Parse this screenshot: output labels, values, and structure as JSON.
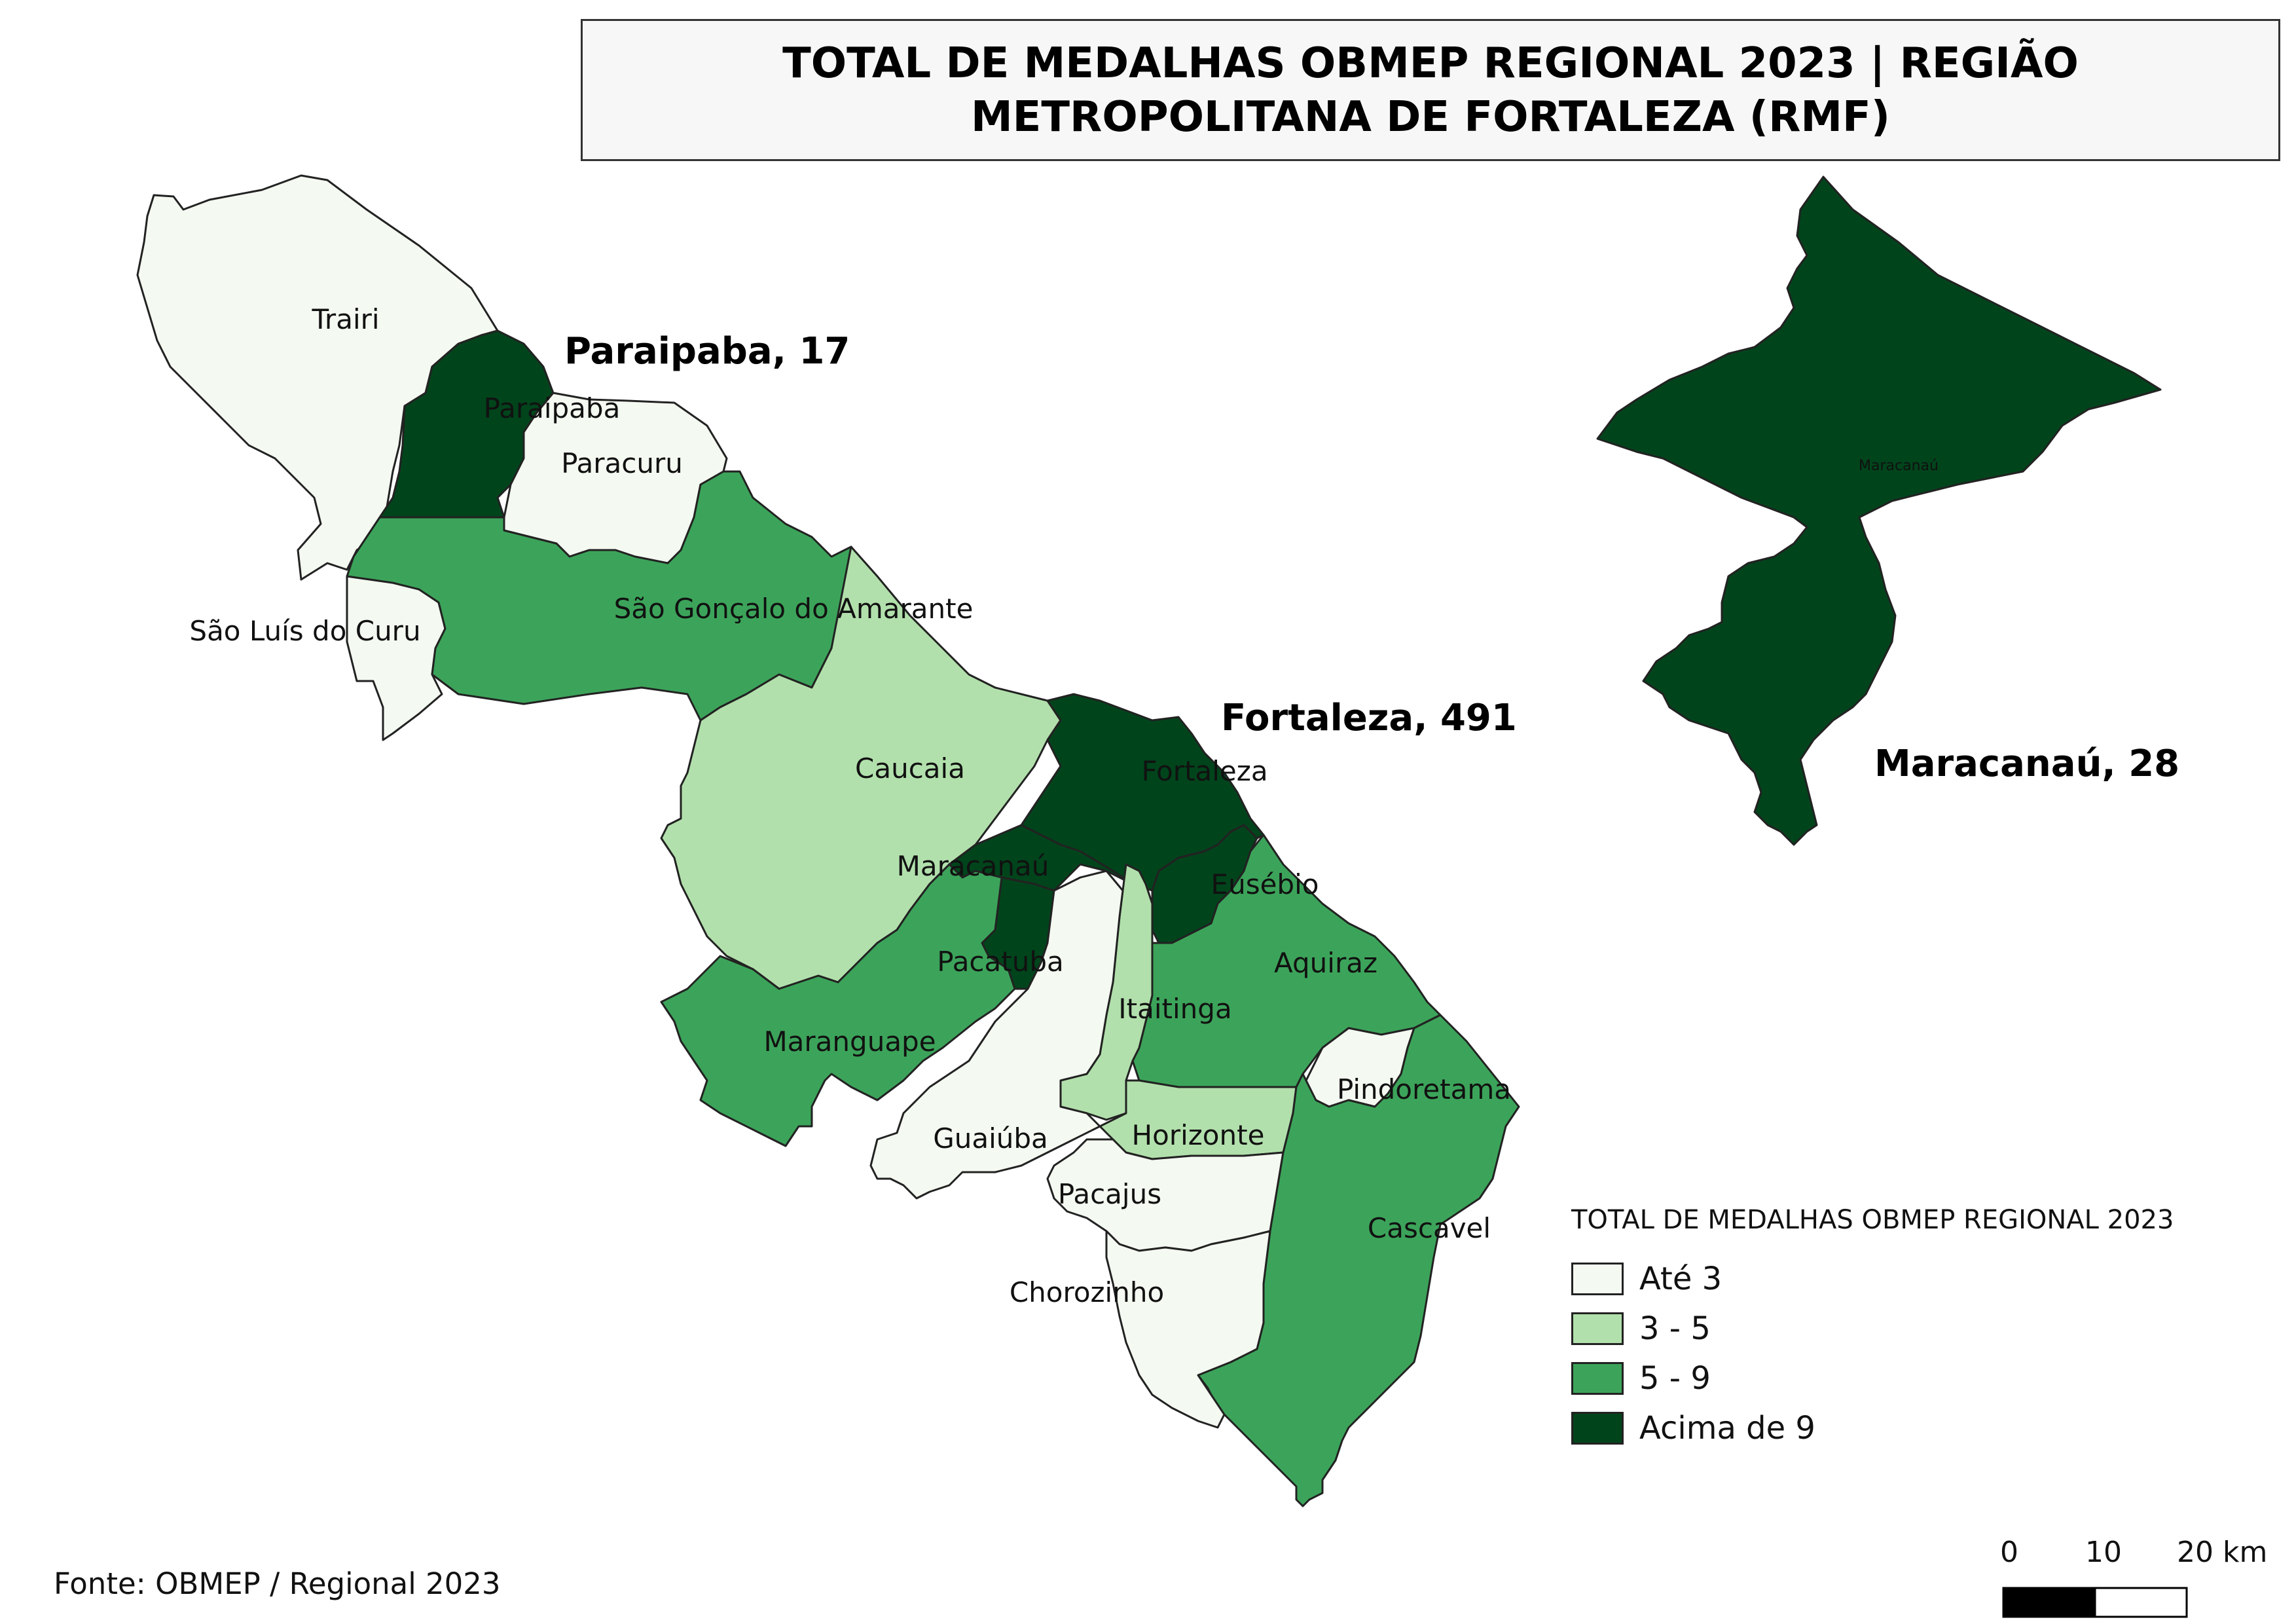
{
  "title": "TOTAL DE MEDALHAS OBMEP REGIONAL 2023 | REGIÃO METROPOLITANA DE FORTALEZA (RMF)",
  "source": "Fonte: OBMEP / Regional 2023",
  "colors": {
    "ate3": "#f4f9f1",
    "3a5": "#b2e0ac",
    "5a9": "#3ca45a",
    "acima9": "#00441b",
    "border": "#222222"
  },
  "legend": {
    "title": "TOTAL DE MEDALHAS OBMEP REGIONAL 2023",
    "items": [
      {
        "label": "Até 3",
        "color": "#f4f9f1"
      },
      {
        "label": "3 - 5",
        "color": "#b2e0ac"
      },
      {
        "label": "5 - 9",
        "color": "#3ca45a"
      },
      {
        "label": "Acima de 9",
        "color": "#00441b"
      }
    ]
  },
  "municipalities": [
    {
      "name": "Trairi",
      "class": "Até 3"
    },
    {
      "name": "Paraipaba",
      "class": "Acima de 9"
    },
    {
      "name": "Paracuru",
      "class": "Até 3"
    },
    {
      "name": "São Luís do Curu",
      "class": "Até 3"
    },
    {
      "name": "São Gonçalo do Amarante",
      "class": "5 - 9"
    },
    {
      "name": "Caucaia",
      "class": "3 - 5"
    },
    {
      "name": "Fortaleza",
      "class": "Acima de 9"
    },
    {
      "name": "Maracanaú",
      "class": "Acima de 9"
    },
    {
      "name": "Eusébio",
      "class": "Acima de 9"
    },
    {
      "name": "Pacatuba",
      "class": "Acima de 9"
    },
    {
      "name": "Aquiraz",
      "class": "5 - 9"
    },
    {
      "name": "Itaitinga",
      "class": "3 - 5"
    },
    {
      "name": "Maranguape",
      "class": "5 - 9"
    },
    {
      "name": "Guaiúba",
      "class": "Até 3"
    },
    {
      "name": "Horizonte",
      "class": "3 - 5"
    },
    {
      "name": "Pindoretama",
      "class": "Até 3"
    },
    {
      "name": "Pacajus",
      "class": "Até 3"
    },
    {
      "name": "Cascavel",
      "class": "5 - 9"
    },
    {
      "name": "Chorozinho",
      "class": "Até 3"
    }
  ],
  "callouts": [
    {
      "name": "Paraipaba",
      "value": 17,
      "text": "Paraipaba, 17"
    },
    {
      "name": "Fortaleza",
      "value": 491,
      "text": "Fortaleza, 491"
    },
    {
      "name": "Maracanaú",
      "value": 28,
      "text": "Maracanaú, 28"
    }
  ],
  "inset": {
    "label": "Maracanaú"
  },
  "scalebar": {
    "ticks": [
      "0",
      "10",
      "20 km"
    ]
  }
}
